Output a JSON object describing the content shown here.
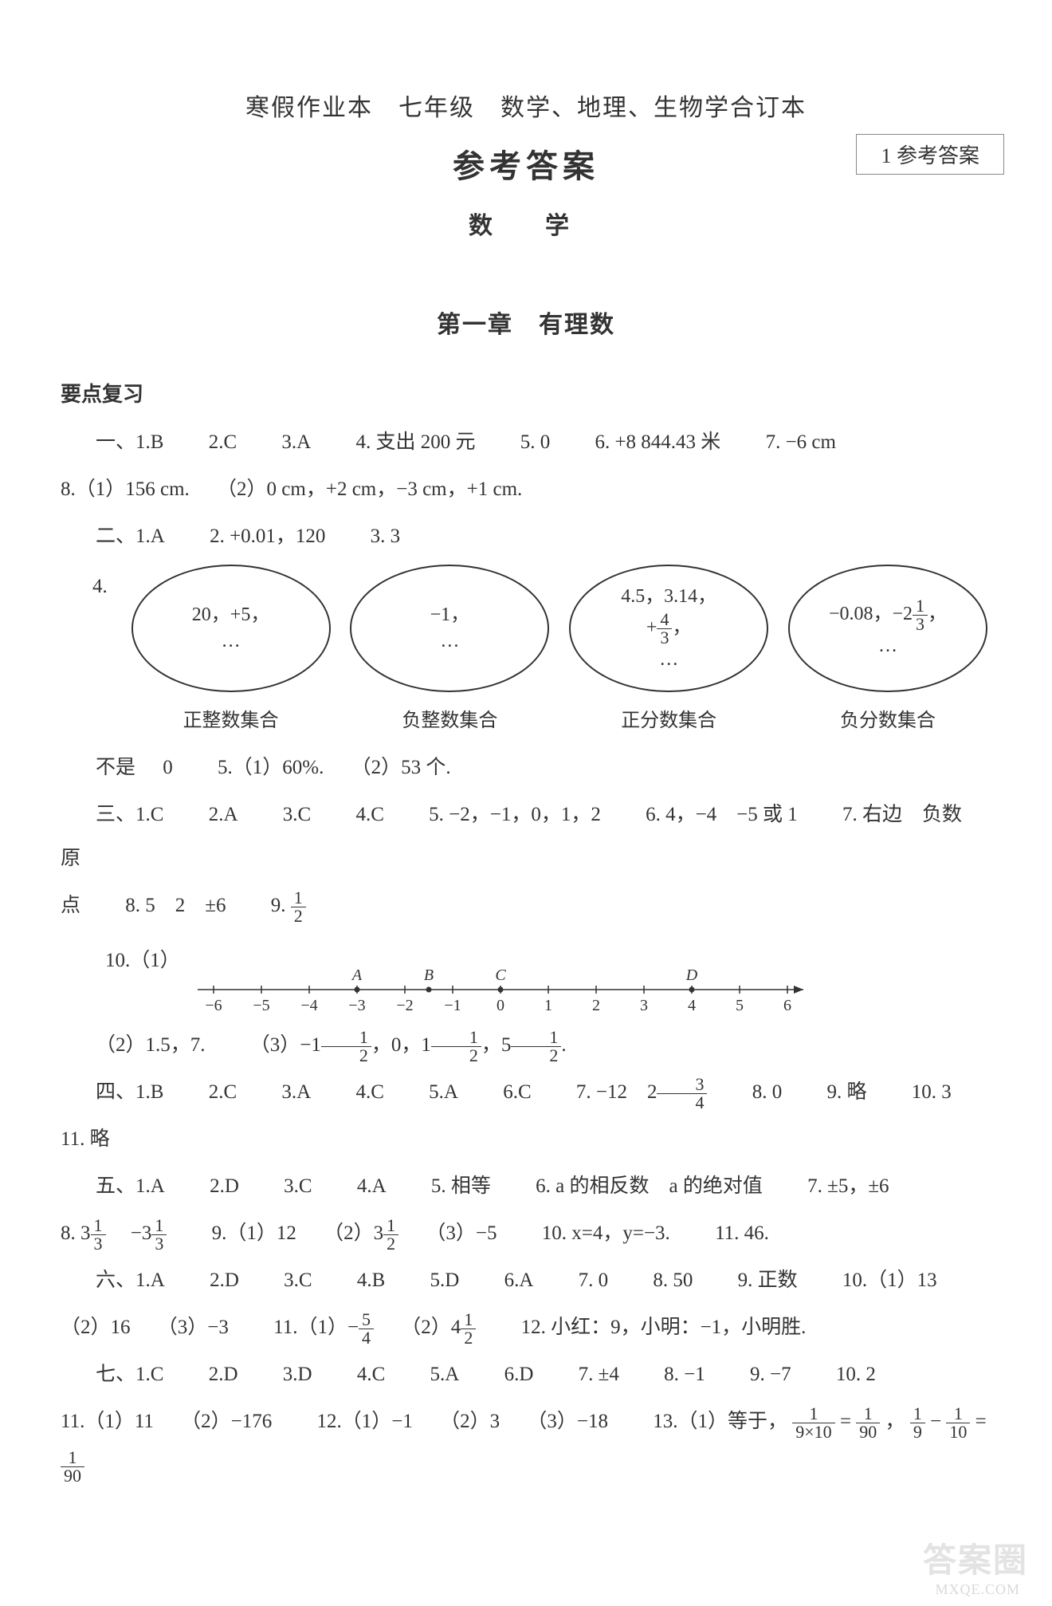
{
  "page_label": "1  参考答案",
  "title_line": "寒假作业本　七年级　数学、地理、生物学合订本",
  "main_title": "参考答案",
  "subject": "数　学",
  "chapter": "第一章　有理数",
  "section_review": "要点复习",
  "sec1": {
    "lead": "一、1.B",
    "i2": "2.C",
    "i3": "3.A",
    "i4": "4. 支出 200 元",
    "i5": "5.  0",
    "i6": "6. +8 844.43 米",
    "i7": "7. −6 cm",
    "i8a": "8.（1）156 cm.",
    "i8b": "（2）0 cm，+2 cm，−3 cm，+1 cm."
  },
  "sec2": {
    "lead": "二、1.A",
    "i2": "2. +0.01，120",
    "i3": "3.  3",
    "q4_lead": "4.",
    "ovals": [
      {
        "lines": [
          "20，+5，",
          "…"
        ],
        "label": "正整数集合"
      },
      {
        "lines": [
          "−1，",
          "…"
        ],
        "label": "负整数集合"
      },
      {
        "lines": [
          "4.5，3.14，",
          "+FRAC43，",
          "…"
        ],
        "label": "正分数集合"
      },
      {
        "lines": [
          "−0.08，−2FRAC13，",
          "…"
        ],
        "label": "负分数集合"
      }
    ],
    "after": {
      "a": "不是",
      "b": "0",
      "c": "5.（1）60%.",
      "d": "（2）53 个."
    }
  },
  "sec3": {
    "lead": "三、1.C",
    "i2": "2.A",
    "i3": "3.C",
    "i4": "4.C",
    "i5": "5. −2，−1，0，1，2",
    "i6": "6. 4，−4　−5 或 1",
    "i7": "7. 右边　负数　原",
    "l2a": "点",
    "l2b": "8. 5　2　±6",
    "l2c_pre": "9.",
    "l2c_frac_num": "1",
    "l2c_frac_den": "2",
    "q10_lead": "10.（1）",
    "numberline": {
      "ticks": [
        -6,
        -5,
        -4,
        -3,
        -2,
        -1,
        0,
        1,
        2,
        3,
        4,
        5,
        6
      ],
      "points": [
        {
          "x": -3,
          "label": "A"
        },
        {
          "x": -1.5,
          "label": "B"
        },
        {
          "x": 0,
          "label": "C"
        },
        {
          "x": 4,
          "label": "D"
        }
      ]
    },
    "q10_2": "（2）1.5，7.",
    "q10_3_pre": "（3）−1",
    "q10_3_mid1": "，0，1",
    "q10_3_mid2": "，5",
    "q10_3_end": "."
  },
  "sec4": {
    "lead": "四、1.B",
    "i2": "2.C",
    "i3": "3.A",
    "i4": "4.C",
    "i5": "5.A",
    "i6": "6.C",
    "i7_pre": "7. −12　2",
    "i7_frac_n": "3",
    "i7_frac_d": "4",
    "i8": "8.  0",
    "i9": "9. 略",
    "i10": "10.  3",
    "l2": "11. 略"
  },
  "sec5": {
    "lead": "五、1.A",
    "i2": "2.D",
    "i3": "3.C",
    "i4": "4.A",
    "i5": "5. 相等",
    "i6": "6. a 的相反数　a 的绝对值",
    "i7": "7. ±5，±6",
    "l2a_pre": "8.  3",
    "l2a_n": "1",
    "l2a_d": "3",
    "l2b_pre": "　−3",
    "l2b_n": "1",
    "l2b_d": "3",
    "l2c": "9.（1）12",
    "l2d_pre": "（2）3",
    "l2d_n": "1",
    "l2d_d": "2",
    "l2e": "（3）−5",
    "l2f": "10. x=4，y=−3.",
    "l2g": "11.  46."
  },
  "sec6": {
    "lead": "六、1.A",
    "i2": "2.D",
    "i3": "3.C",
    "i4": "4.B",
    "i5": "5.D",
    "i6": "6.A",
    "i7": "7.  0",
    "i8": "8.  50",
    "i9": "9. 正数",
    "i10": "10.（1）13",
    "l2a": "（2）16",
    "l2b": "（3）−3",
    "l2c_pre": "11.（1）−",
    "l2c_n": "5",
    "l2c_d": "4",
    "l2d_pre": "（2）4",
    "l2d_n": "1",
    "l2d_d": "2",
    "l2e": "12. 小红：9，小明：−1，小明胜."
  },
  "sec7": {
    "lead": "七、1.C",
    "i2": "2.D",
    "i3": "3.D",
    "i4": "4.C",
    "i5": "5.A",
    "i6": "6.D",
    "i7": "7. ±4",
    "i8": "8. −1",
    "i9": "9. −7",
    "i10": "10.  2",
    "l2a": "11.（1）11",
    "l2b": "（2）−176",
    "l2c": "12.（1）−1",
    "l2d": "（2）3",
    "l2e": "（3）−18",
    "l2f_pre": "13.（1）等于，",
    "eq_a_n": "1",
    "eq_a_d": "9×10",
    "eq_a_rhs_n": "1",
    "eq_a_rhs_d": "90",
    "eq_b_l_n": "1",
    "eq_b_l_d": "9",
    "eq_b_r_n": "1",
    "eq_b_r_d": "10",
    "eq_b_res_n": "1",
    "eq_b_res_d": "90"
  },
  "watermark": "答案圈",
  "watermark_sub": "MXQE.COM",
  "style": {
    "text_color": "#333333",
    "bg": "#ffffff",
    "oval_border": "#333333",
    "font_size_body": 25,
    "font_size_title": 40
  }
}
